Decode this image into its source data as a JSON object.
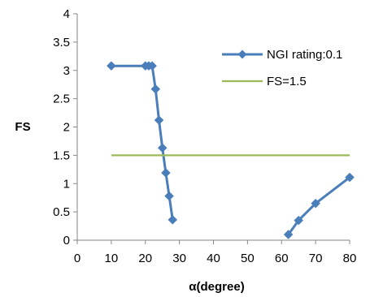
{
  "chart_data": {
    "type": "scatter",
    "xlabel": "α(degree)",
    "ylabel": "FS",
    "xlim": [
      0,
      80
    ],
    "ylim": [
      0,
      4
    ],
    "xticks": [
      "0",
      "10",
      "20",
      "30",
      "40",
      "50",
      "60",
      "70",
      "80"
    ],
    "yticks": [
      "0",
      "0.5",
      "1",
      "1.5",
      "2",
      "2.5",
      "3",
      "3.5",
      "4"
    ],
    "grid": false,
    "legend_position": "top-right",
    "series": [
      {
        "name": "NGI rating:0.1",
        "color": "#4a7ebb",
        "marker": "diamond",
        "segments": [
          [
            {
              "x": 10,
              "y": 3.08
            },
            {
              "x": 20,
              "y": 3.08
            },
            {
              "x": 21,
              "y": 3.08
            },
            {
              "x": 22,
              "y": 3.08
            },
            {
              "x": 23,
              "y": 2.67
            },
            {
              "x": 24,
              "y": 2.12
            },
            {
              "x": 25,
              "y": 1.63
            },
            {
              "x": 26,
              "y": 1.19
            },
            {
              "x": 27,
              "y": 0.78
            },
            {
              "x": 28,
              "y": 0.36
            }
          ],
          [
            {
              "x": 62,
              "y": 0.1
            },
            {
              "x": 65,
              "y": 0.35
            },
            {
              "x": 70,
              "y": 0.65
            },
            {
              "x": 80,
              "y": 1.11
            }
          ]
        ]
      },
      {
        "name": "FS=1.5",
        "color": "#9bbb59",
        "marker": "none",
        "segments": [
          [
            {
              "x": 10,
              "y": 1.5
            },
            {
              "x": 80,
              "y": 1.5
            }
          ]
        ]
      }
    ]
  }
}
